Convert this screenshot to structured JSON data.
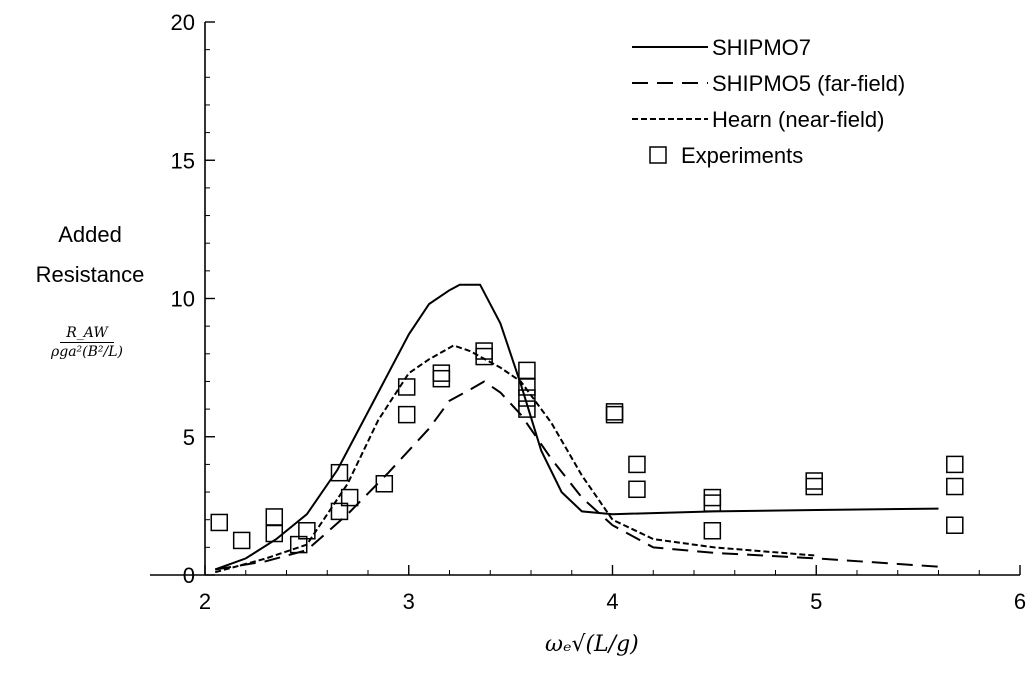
{
  "chart_data": {
    "type": "line",
    "title": "",
    "ylabel_line1": "Added",
    "ylabel_line2": "Resistance",
    "ylabel_fraction_numerator": "R_AW",
    "ylabel_fraction_denominator": "ρga²(B²/L)",
    "xlabel": "ωₑ√(L/g)",
    "xlim": [
      2,
      6
    ],
    "ylim": [
      0,
      20
    ],
    "x_ticks": [
      "2",
      "3",
      "4",
      "5",
      "6"
    ],
    "y_ticks": [
      "0",
      "5",
      "10",
      "15",
      "20"
    ],
    "legend_position": "top-right",
    "grid": false,
    "series": [
      {
        "name": "SHIPMO7",
        "style": "solid",
        "x": [
          2.05,
          2.2,
          2.35,
          2.5,
          2.65,
          2.8,
          3.0,
          3.1,
          3.2,
          3.25,
          3.35,
          3.45,
          3.55,
          3.65,
          3.75,
          3.85,
          4.0,
          4.5,
          5.0,
          5.6
        ],
        "y": [
          0.2,
          0.6,
          1.3,
          2.2,
          3.8,
          5.9,
          8.7,
          9.8,
          10.3,
          10.5,
          10.5,
          9.1,
          6.9,
          4.5,
          3.0,
          2.3,
          2.2,
          2.3,
          2.35,
          2.4
        ]
      },
      {
        "name": "SHIPMO5 (far-field)",
        "style": "dashed",
        "x": [
          2.05,
          2.3,
          2.5,
          2.7,
          2.9,
          3.1,
          3.2,
          3.3,
          3.37,
          3.45,
          3.55,
          3.7,
          3.85,
          4.0,
          4.2,
          4.5,
          5.0,
          5.6
        ],
        "y": [
          0.2,
          0.5,
          0.9,
          2.2,
          3.7,
          5.3,
          6.3,
          6.7,
          7.0,
          6.6,
          5.8,
          4.2,
          2.8,
          1.8,
          1.0,
          0.8,
          0.6,
          0.3
        ]
      },
      {
        "name": "Hearn (near-field)",
        "style": "short-dashed",
        "x": [
          2.05,
          2.3,
          2.5,
          2.7,
          2.85,
          3.0,
          3.1,
          3.22,
          3.3,
          3.45,
          3.55,
          3.7,
          3.85,
          4.0,
          4.2,
          4.5,
          5.0
        ],
        "y": [
          0.1,
          0.6,
          1.1,
          3.3,
          5.6,
          7.3,
          7.8,
          8.3,
          8.1,
          7.5,
          7.0,
          5.5,
          3.6,
          2.0,
          1.3,
          1.0,
          0.7
        ]
      },
      {
        "name": "Experiments",
        "style": "markers",
        "x": [
          2.07,
          2.18,
          2.34,
          2.34,
          2.46,
          2.5,
          2.66,
          2.66,
          2.71,
          2.88,
          2.99,
          2.99,
          3.16,
          3.16,
          3.37,
          3.37,
          3.58,
          3.58,
          3.58,
          3.58,
          4.01,
          4.01,
          4.12,
          4.12,
          4.49,
          4.49,
          4.49,
          4.99,
          4.99,
          5.68,
          5.68,
          5.68
        ],
        "y": [
          1.9,
          1.25,
          2.1,
          1.5,
          1.1,
          1.6,
          3.7,
          2.3,
          2.8,
          3.3,
          6.8,
          5.8,
          7.3,
          7.1,
          8.1,
          7.9,
          7.4,
          6.8,
          6.4,
          6.0,
          5.9,
          5.8,
          4.0,
          3.1,
          2.8,
          2.6,
          1.6,
          3.4,
          3.2,
          4.0,
          3.2,
          1.8
        ]
      }
    ]
  }
}
